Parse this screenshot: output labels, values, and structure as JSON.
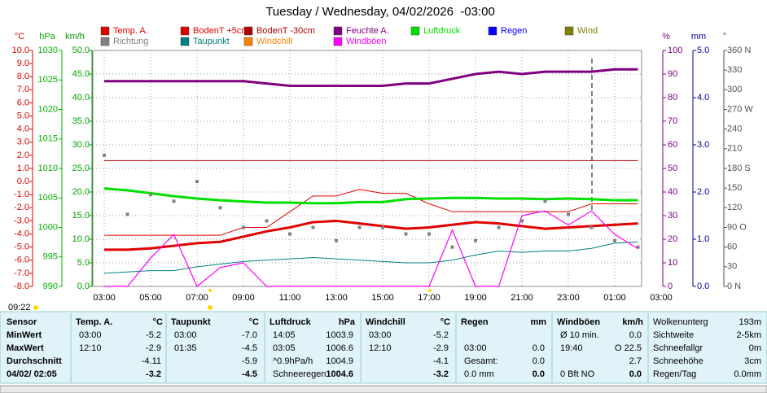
{
  "chart_data": {
    "type": "line",
    "title": "Tuesday / Wednesday, 04/02/2026  -03:00",
    "categories": [
      "03:00",
      null,
      "05:00",
      null,
      "07:00",
      null,
      "09:00",
      null,
      "11:00",
      null,
      "13:00",
      null,
      "15:00",
      null,
      "17:00",
      null,
      "19:00",
      null,
      "21:00",
      null,
      "23:00",
      null,
      "01:00",
      null,
      "03:00"
    ],
    "axes": [
      {
        "title": "°C",
        "color": "#e00000",
        "ylim": [
          -8,
          10
        ],
        "yticks": [
          {
            "value": -8,
            "label": "-8.0"
          },
          {
            "value": -7,
            "label": "-7.0"
          },
          {
            "value": -6,
            "label": "-6.0"
          },
          {
            "value": -5,
            "label": "-5.0"
          },
          {
            "value": -4,
            "label": "-4.0"
          },
          {
            "value": -3,
            "label": "-3.0"
          },
          {
            "value": -2,
            "label": "-2.0"
          },
          {
            "value": -1,
            "label": "-1.0"
          },
          {
            "value": 0,
            "label": "0.0"
          },
          {
            "value": 1,
            "label": "1.0"
          },
          {
            "value": 2,
            "label": "2.0"
          },
          {
            "value": 3,
            "label": "3.0"
          },
          {
            "value": 4,
            "label": "4.0"
          },
          {
            "value": 5,
            "label": "5.0"
          },
          {
            "value": 6,
            "label": "6.0"
          },
          {
            "value": 7,
            "label": "7.0"
          },
          {
            "value": 8,
            "label": "8.0"
          },
          {
            "value": 9,
            "label": "9.0"
          },
          {
            "value": 10,
            "label": "10.0"
          }
        ]
      },
      {
        "title": "hPa",
        "color": "#00b000",
        "ylim": [
          990,
          1030
        ],
        "yticks": [
          990,
          995,
          1000,
          1005,
          1010,
          1015,
          1020,
          1025,
          1030
        ]
      },
      {
        "title": "km/h",
        "color": "#00a000",
        "ylim": [
          0,
          50
        ],
        "yticks": [
          {
            "value": 0,
            "label": "0.0"
          },
          {
            "value": 5,
            "label": "5.0"
          },
          {
            "value": 10,
            "label": "10.0"
          },
          {
            "value": 15,
            "label": "15.0"
          },
          {
            "value": 20,
            "label": "20.0"
          },
          {
            "value": 25,
            "label": "25.0"
          },
          {
            "value": 30,
            "label": "30.0"
          },
          {
            "value": 35,
            "label": "35.0"
          },
          {
            "value": 40,
            "label": "40.0"
          },
          {
            "value": 45,
            "label": "45.0"
          },
          {
            "value": 50,
            "label": "50.0"
          }
        ]
      },
      {
        "title": "%",
        "color": "#800080",
        "ylim": [
          0,
          100
        ],
        "yticks": [
          0,
          10,
          20,
          30,
          40,
          50,
          60,
          70,
          80,
          90,
          100
        ]
      },
      {
        "title": "mm",
        "color": "#0000a0",
        "ylim": [
          0,
          5
        ],
        "yticks": [
          {
            "value": 0,
            "label": "0.0"
          },
          {
            "value": 1,
            "label": "1.0"
          },
          {
            "value": 2,
            "label": "2.0"
          },
          {
            "value": 3,
            "label": "3.0"
          },
          {
            "value": 4,
            "label": "4.0"
          },
          {
            "value": 5,
            "label": "5.0"
          }
        ]
      },
      {
        "title": "°",
        "color": "#505050",
        "ylim": [
          0,
          360
        ],
        "yticks": [
          {
            "value": 0,
            "label": "0 N"
          },
          30,
          60,
          {
            "value": 90,
            "label": "90 O"
          },
          120,
          150,
          {
            "value": 180,
            "label": "180 S"
          },
          210,
          240,
          {
            "value": 270,
            "label": "270 W"
          },
          300,
          330,
          {
            "value": 360,
            "label": "360 N"
          }
        ]
      }
    ],
    "series": [
      {
        "name": "Temp. A.",
        "color": "#e00000",
        "axis": 0,
        "values": [
          -5.2,
          -5.2,
          -5.1,
          -4.9,
          -4.7,
          -4.6,
          -4.2,
          -3.8,
          -3.5,
          -3.1,
          -3.0,
          -3.2,
          -3.4,
          -3.6,
          -3.5,
          -3.3,
          -3.1,
          -3.2,
          -3.4,
          -3.6,
          -3.5,
          -3.4,
          -3.3,
          -3.2,
          null
        ]
      },
      {
        "name": "BodenT +5cm",
        "color": "#e00000",
        "axis": 0,
        "values": [
          -4.1,
          -4.1,
          -4.1,
          -4.1,
          -4.1,
          -4.1,
          -3.5,
          -3.5,
          -2.3,
          -1.1,
          -1.1,
          -0.6,
          -0.9,
          -0.9,
          -1.7,
          -2.3,
          -2.3,
          -2.3,
          -2.3,
          -2.3,
          -2.3,
          -1.7,
          -1.7,
          -1.7,
          null
        ]
      },
      {
        "name": "BodenT -30cm",
        "color": "#b00000",
        "axis": 0,
        "values": [
          1.6,
          1.6,
          1.6,
          1.6,
          1.6,
          1.6,
          1.6,
          1.6,
          1.6,
          1.6,
          1.6,
          1.6,
          1.6,
          1.6,
          1.6,
          1.6,
          1.6,
          1.6,
          1.6,
          1.6,
          1.6,
          1.6,
          1.6,
          1.6,
          null
        ]
      },
      {
        "name": "Feuchte A.",
        "color": "#800080",
        "axis": 3,
        "values": [
          87,
          87,
          87,
          87,
          87,
          87,
          87,
          86,
          85,
          85,
          85,
          85,
          85,
          86,
          86,
          88,
          90,
          91,
          90,
          91,
          91,
          91,
          92,
          92,
          null
        ]
      },
      {
        "name": "Luftdruck",
        "color": "#00e000",
        "axis": 1,
        "values": [
          1006.6,
          1006.3,
          1005.8,
          1005.3,
          1004.9,
          1004.6,
          1004.4,
          1004.2,
          1004.2,
          1004.1,
          1004.1,
          1004.3,
          1004.3,
          1004.8,
          1004.9,
          1005.0,
          1005.0,
          1004.9,
          1004.9,
          1004.8,
          1004.9,
          1004.8,
          1004.6,
          1004.6,
          null
        ]
      },
      {
        "name": "Regen",
        "color": "#0000ff",
        "axis": 4
      },
      {
        "name": "Wind",
        "color": "#808000",
        "axis": 2
      },
      {
        "name": "Richtung",
        "color": "#808080",
        "axis": 5,
        "marker": "square",
        "values": [
          200,
          110,
          140,
          130,
          160,
          120,
          90,
          100,
          80,
          90,
          70,
          90,
          90,
          80,
          80,
          60,
          70,
          90,
          100,
          130,
          110,
          90,
          70,
          60,
          null
        ]
      },
      {
        "name": "Taupunkt",
        "color": "#008080",
        "axis": 0,
        "values": [
          -7.0,
          -6.9,
          -6.8,
          -6.8,
          -6.5,
          -6.3,
          -6.1,
          -6.0,
          -5.9,
          -5.8,
          -5.9,
          -6.0,
          -6.1,
          -6.2,
          -6.2,
          -6.0,
          -5.6,
          -5.3,
          -5.4,
          -5.3,
          -5.3,
          -5.1,
          -4.7,
          -4.6,
          null
        ]
      },
      {
        "name": "Windchill",
        "color": "#ff8000",
        "axis": 0
      },
      {
        "name": "Windböen",
        "color": "#ff00ff",
        "axis": 2,
        "values": [
          0,
          0,
          6,
          11,
          0,
          4,
          5,
          0,
          0,
          0,
          0,
          0,
          0,
          0,
          0,
          12,
          0,
          0,
          15,
          16,
          13,
          16,
          11,
          8,
          null
        ]
      }
    ],
    "grid": true
  },
  "clock": "09:22",
  "table": {
    "row_labels": [
      "Sensor",
      "MinWert",
      "MaxWert",
      "Durchschnitt",
      "04/02/ 02:05"
    ],
    "sections": [
      {
        "title": "Temp. A.",
        "unit": "°C",
        "rows": [
          [
            "03:00",
            "-5.2"
          ],
          [
            "12:10",
            "-2.9"
          ],
          [
            null,
            "-4.11"
          ],
          [
            null,
            "-3.2"
          ]
        ]
      },
      {
        "title": "Taupunkt",
        "unit": "°C",
        "rows": [
          [
            "03:00",
            "-7.0"
          ],
          [
            "01:35",
            "-4.5"
          ],
          [
            null,
            "-5.9"
          ],
          [
            null,
            "-4.5"
          ]
        ]
      },
      {
        "title": "Luftdruck",
        "unit": "hPa",
        "rows": [
          [
            "14:05",
            "1003.9"
          ],
          [
            "03:05",
            "1006.6"
          ],
          [
            "^0.9hPa/h",
            "1004.9"
          ],
          [
            "Schneeregen",
            "1004.6"
          ]
        ]
      },
      {
        "title": "Windchill",
        "unit": "°C",
        "rows": [
          [
            "03:00",
            "-5.2"
          ],
          [
            "12:10",
            "-2.9"
          ],
          [
            null,
            "-4.1"
          ],
          [
            null,
            "-3.2"
          ]
        ]
      },
      {
        "title": "Regen",
        "unit": "mm",
        "rows": [
          [
            null,
            null
          ],
          [
            "03:00",
            "0.0"
          ],
          [
            "Gesamt:",
            "0.0"
          ],
          [
            "0.0 mm",
            "0.0"
          ]
        ]
      },
      {
        "title": "Windböen",
        "unit": "km/h",
        "rows": [
          [
            "Ø 10 min.",
            "0.0"
          ],
          [
            "19:40",
            "O 22.5"
          ],
          [
            null,
            "2.7"
          ],
          [
            "0 Bft NO",
            "0.0"
          ]
        ]
      }
    ],
    "extra": [
      [
        "Wolkenunterg",
        "193m"
      ],
      [
        "Sichtweite",
        "2-5km"
      ],
      [
        "Schneefallgr",
        "0m"
      ],
      [
        "Schneehöhe",
        "3cm"
      ],
      [
        "Regen/Tag",
        "0.0mm"
      ]
    ]
  }
}
